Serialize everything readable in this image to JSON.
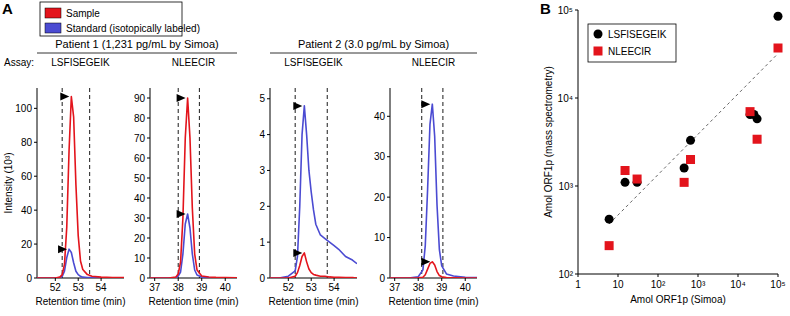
{
  "figure": {
    "panel_labels": [
      "A",
      "B"
    ],
    "assay_label": "Assay:",
    "groups": [
      "Patient 1 (1,231 pg/mL by Simoa)",
      "Patient 2 (3.0 pg/mL by Simoa)"
    ]
  },
  "chart_data": [
    {
      "type": "line",
      "title": "LSFISEGEIK",
      "x_label": "Retention time (min)",
      "y_label": "Intensity (10³)",
      "x": [
        51.2,
        51.6,
        52.0,
        52.2,
        52.3,
        52.4,
        52.5,
        52.6,
        52.7,
        52.8,
        52.9,
        53.0,
        53.1,
        53.2,
        53.4,
        53.6,
        54.0,
        54.5,
        55.0
      ],
      "series": [
        {
          "name": "Sample",
          "color": "#e3141c",
          "values": [
            0,
            0,
            0,
            0.5,
            2,
            8,
            30,
            75,
            107,
            95,
            55,
            25,
            10,
            5,
            2,
            1,
            0.5,
            0.3,
            0.2
          ]
        },
        {
          "name": "Standard (isotopically labeled)",
          "color": "#4b4bd2",
          "values": [
            0,
            0,
            0,
            0.2,
            1,
            4,
            12,
            17,
            15,
            9,
            4,
            2,
            1,
            0.5,
            0.3,
            0.2,
            0.1,
            0,
            0
          ]
        }
      ],
      "vlines": [
        52.3,
        53.5
      ],
      "xlim": [
        51.2,
        55
      ],
      "xticks": [
        52,
        53,
        54
      ],
      "ylim": [
        0,
        112
      ],
      "yticks": [
        0,
        20,
        40,
        60,
        80,
        100
      ],
      "legend": "top-left"
    },
    {
      "type": "line",
      "title": "NLEECIR",
      "x_label": "Retention time (min)",
      "x": [
        36.8,
        37.2,
        37.6,
        37.9,
        38.0,
        38.1,
        38.2,
        38.3,
        38.4,
        38.5,
        38.6,
        38.7,
        38.8,
        39.0,
        39.3,
        39.6,
        40.0,
        40.5
      ],
      "series": [
        {
          "name": "Sample",
          "color": "#e3141c",
          "values": [
            0,
            0,
            0,
            0.5,
            2,
            8,
            30,
            70,
            90,
            70,
            35,
            12,
            4,
            1,
            0.5,
            0.3,
            0.2,
            0.1
          ]
        },
        {
          "name": "Standard (isotopically labeled)",
          "color": "#4b4bd2",
          "values": [
            0,
            0,
            0,
            0.2,
            1,
            3,
            12,
            27,
            32,
            25,
            12,
            4,
            1.5,
            0.5,
            0.2,
            0.1,
            0,
            0
          ]
        }
      ],
      "vlines": [
        38.0,
        38.9
      ],
      "xlim": [
        36.8,
        40.5
      ],
      "xticks": [
        37,
        38,
        39,
        40
      ],
      "ylim": [
        0,
        95
      ],
      "yticks": [
        0,
        10,
        20,
        30,
        40,
        50,
        60,
        70,
        80,
        90
      ]
    },
    {
      "type": "line",
      "title": "LSFISEGEIK",
      "x_label": "Retention time (min)",
      "x": [
        51.2,
        51.6,
        52.0,
        52.3,
        52.4,
        52.5,
        52.6,
        52.7,
        52.8,
        52.9,
        53.0,
        53.1,
        53.2,
        53.4,
        53.6,
        53.8,
        54.0,
        54.2,
        54.5,
        54.8,
        55.0
      ],
      "series": [
        {
          "name": "Sample",
          "color": "#e3141c",
          "values": [
            0,
            0,
            0,
            0.05,
            0.15,
            0.35,
            0.6,
            0.7,
            0.45,
            0.25,
            0.15,
            0.1,
            0.08,
            0.05,
            0.05,
            0.03,
            0.02,
            0.02,
            0.01,
            0.01,
            0
          ]
        },
        {
          "name": "Standard (isotopically labeled)",
          "color": "#4b4bd2",
          "values": [
            0,
            0,
            0.05,
            0.2,
            0.6,
            2.0,
            4.0,
            4.8,
            4.0,
            3.0,
            2.4,
            1.9,
            1.5,
            1.2,
            1.1,
            1.0,
            0.9,
            0.8,
            0.6,
            0.5,
            0.4
          ]
        }
      ],
      "vlines": [
        52.3,
        53.7
      ],
      "xlim": [
        51.2,
        55
      ],
      "xticks": [
        52,
        53,
        54
      ],
      "ylim": [
        0,
        5.3
      ],
      "yticks": [
        0,
        1,
        2,
        3,
        4,
        5
      ]
    },
    {
      "type": "line",
      "title": "NLEECIR",
      "x_label": "Retention time (min)",
      "x": [
        36.8,
        37.2,
        37.6,
        38.0,
        38.2,
        38.3,
        38.4,
        38.5,
        38.6,
        38.7,
        38.8,
        38.9,
        39.0,
        39.2,
        39.5,
        40.0,
        40.5
      ],
      "series": [
        {
          "name": "Sample",
          "color": "#e3141c",
          "values": [
            0,
            0,
            0,
            0.05,
            0.2,
            0.8,
            2.2,
            3.6,
            4.0,
            3.2,
            1.6,
            0.6,
            0.3,
            0.1,
            0.05,
            0,
            0
          ]
        },
        {
          "name": "Standard (isotopically labeled)",
          "color": "#4b4bd2",
          "values": [
            0,
            0,
            0,
            0.3,
            2,
            8,
            22,
            38,
            43,
            35,
            18,
            7,
            3,
            1,
            0.5,
            0.2,
            0.1
          ]
        }
      ],
      "vlines": [
        38.15,
        39.05
      ],
      "xlim": [
        36.8,
        40.5
      ],
      "xticks": [
        37,
        38,
        39,
        40
      ],
      "ylim": [
        0,
        47
      ],
      "yticks": [
        0,
        10,
        20,
        30,
        40
      ]
    },
    {
      "type": "scatter",
      "x_label": "Amol ORF1p (Simoa)",
      "y_label": "Amol ORF1p (mass spectrometry)",
      "log": true,
      "legend": "top-left",
      "series": [
        {
          "name": "LSFISEGEIK",
          "color": "#000000",
          "marker": "circle",
          "x": [
            6,
            15,
            30,
            450,
            650,
            20000,
            25000,
            30000,
            100000
          ],
          "values": [
            420,
            1100,
            1100,
            1600,
            3300,
            6500,
            6500,
            5800,
            85000
          ]
        },
        {
          "name": "NLEECIR",
          "color": "#e3141c",
          "marker": "square",
          "x": [
            6,
            15,
            30,
            450,
            650,
            20000,
            30000,
            100000
          ],
          "values": [
            210,
            1500,
            1200,
            1100,
            2000,
            7000,
            3400,
            37000
          ]
        }
      ],
      "trend_line": {
        "x": [
          6,
          100000
        ],
        "y": [
          370,
          32000
        ],
        "line_style": "dashed"
      },
      "xlim": [
        1,
        100000
      ],
      "xticks": [
        1,
        10,
        {
          "value": 100,
          "label": "10²"
        },
        {
          "value": 1000,
          "label": "10³"
        },
        {
          "value": 10000,
          "label": "10⁴"
        },
        {
          "value": 100000,
          "label": "10⁵"
        }
      ],
      "ylim": [
        100,
        100000
      ],
      "yticks": [
        {
          "value": 100,
          "label": "10²"
        },
        {
          "value": 1000,
          "label": "10³"
        },
        {
          "value": 10000,
          "label": "10⁴"
        },
        {
          "value": 100000,
          "label": "10⁵"
        }
      ]
    }
  ]
}
